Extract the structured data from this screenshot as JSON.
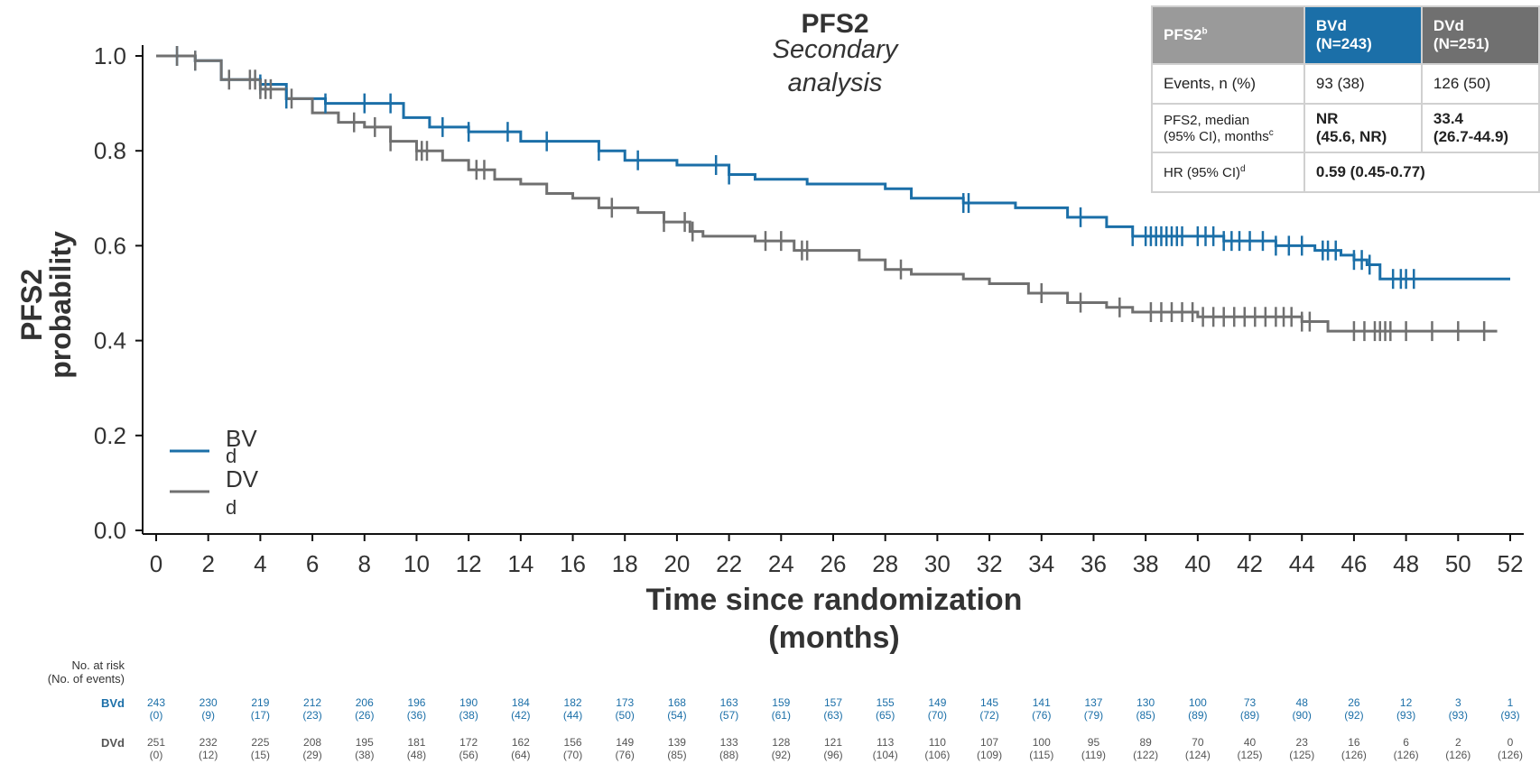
{
  "colors": {
    "bvd": "#1b6fa8",
    "dvd": "#707070",
    "axis": "#111111",
    "header_gray": "#9a9a9a"
  },
  "title": {
    "main": "PFS2",
    "sub1": "Secondary",
    "sub2": "analysis"
  },
  "chart_data": {
    "type": "line",
    "subtype": "kaplan-meier-step",
    "ylabel_line1": "PFS2",
    "ylabel_line2": "probability",
    "xlabel_line1": "Time since randomization",
    "xlabel_line2": "(months)",
    "xlim": [
      0,
      52
    ],
    "ylim": [
      0,
      1
    ],
    "x_ticks": [
      0,
      2,
      4,
      6,
      8,
      10,
      12,
      14,
      16,
      18,
      20,
      22,
      24,
      26,
      28,
      30,
      32,
      34,
      36,
      38,
      40,
      42,
      44,
      46,
      48,
      50,
      52
    ],
    "y_ticks": [
      "0.0",
      "0.2",
      "0.4",
      "0.6",
      "0.8",
      "1.0"
    ],
    "legend_position": "bottom-left",
    "series": [
      {
        "name_line1": "BV",
        "name_line2": "d",
        "color": "#1b6fa8",
        "points": [
          [
            0,
            1.0
          ],
          [
            1.5,
            0.99
          ],
          [
            2.5,
            0.95
          ],
          [
            4,
            0.94
          ],
          [
            5,
            0.91
          ],
          [
            6.5,
            0.9
          ],
          [
            9.5,
            0.87
          ],
          [
            10.5,
            0.85
          ],
          [
            12,
            0.84
          ],
          [
            14,
            0.82
          ],
          [
            17,
            0.8
          ],
          [
            18,
            0.78
          ],
          [
            20,
            0.77
          ],
          [
            22,
            0.75
          ],
          [
            23,
            0.74
          ],
          [
            25,
            0.73
          ],
          [
            28,
            0.72
          ],
          [
            29,
            0.7
          ],
          [
            31,
            0.69
          ],
          [
            33,
            0.68
          ],
          [
            35,
            0.66
          ],
          [
            36.5,
            0.64
          ],
          [
            37.5,
            0.62
          ],
          [
            41,
            0.61
          ],
          [
            43,
            0.6
          ],
          [
            44.5,
            0.59
          ],
          [
            45.5,
            0.58
          ],
          [
            46,
            0.57
          ],
          [
            46.5,
            0.56
          ],
          [
            47,
            0.53
          ],
          [
            52,
            0.53
          ]
        ],
        "censor_x": [
          0.8,
          1.5,
          4,
          5,
          6.5,
          8,
          9,
          11,
          12,
          13.5,
          15,
          17,
          18.5,
          21.5,
          22,
          31,
          31.2,
          35.5,
          37.5,
          38,
          38.2,
          38.4,
          38.6,
          38.8,
          39,
          39.2,
          39.4,
          40,
          40.3,
          40.6,
          41,
          41.3,
          41.6,
          42,
          42.5,
          43,
          43.5,
          44,
          44.8,
          45,
          45.3,
          46,
          46.3,
          46.6,
          47.5,
          47.8,
          48,
          48.3
        ]
      },
      {
        "name_line1": "DV",
        "name_line2": "d",
        "color": "#707070",
        "points": [
          [
            0,
            1.0
          ],
          [
            1.5,
            0.99
          ],
          [
            2.5,
            0.95
          ],
          [
            4,
            0.93
          ],
          [
            5,
            0.91
          ],
          [
            6,
            0.88
          ],
          [
            7,
            0.86
          ],
          [
            8,
            0.85
          ],
          [
            9,
            0.82
          ],
          [
            10,
            0.8
          ],
          [
            11,
            0.78
          ],
          [
            12,
            0.76
          ],
          [
            13,
            0.74
          ],
          [
            14,
            0.73
          ],
          [
            15,
            0.71
          ],
          [
            16,
            0.7
          ],
          [
            17,
            0.68
          ],
          [
            18.5,
            0.67
          ],
          [
            19.5,
            0.65
          ],
          [
            20.5,
            0.63
          ],
          [
            21,
            0.62
          ],
          [
            23,
            0.61
          ],
          [
            24.5,
            0.59
          ],
          [
            27,
            0.57
          ],
          [
            28,
            0.55
          ],
          [
            29,
            0.54
          ],
          [
            31,
            0.53
          ],
          [
            32,
            0.52
          ],
          [
            33.5,
            0.5
          ],
          [
            35,
            0.48
          ],
          [
            36.5,
            0.47
          ],
          [
            37.5,
            0.46
          ],
          [
            40,
            0.45
          ],
          [
            44,
            0.44
          ],
          [
            45,
            0.42
          ],
          [
            51.5,
            0.42
          ]
        ],
        "censor_x": [
          0.8,
          1.5,
          2.8,
          3.6,
          3.8,
          4,
          4.2,
          4.4,
          5.2,
          7.6,
          8.4,
          9,
          10,
          10.2,
          10.4,
          12.3,
          12.6,
          17.5,
          19.5,
          20.3,
          20.6,
          23.4,
          24,
          24.8,
          25,
          28.6,
          34,
          35.5,
          37,
          38.2,
          38.6,
          39,
          39.4,
          39.8,
          40.2,
          40.6,
          41,
          41.4,
          41.8,
          42.2,
          42.6,
          43,
          43.3,
          43.6,
          44,
          44.3,
          46,
          46.4,
          46.8,
          47,
          47.2,
          47.4,
          48,
          49,
          50,
          51
        ]
      }
    ]
  },
  "summary_table": {
    "header_label": "PFS2",
    "header_label_sup": "b",
    "bvd_header_line1": "BVd",
    "bvd_header_line2": "(N=243)",
    "dvd_header_line1": "DVd",
    "dvd_header_line2": "(N=251)",
    "row1_label": "Events, n (%)",
    "row1_bvd": "93 (38)",
    "row1_dvd": "126 (50)",
    "row2_label_line1": "PFS2, median",
    "row2_label_line2": "(95% CI), months",
    "row2_label_sup": "c",
    "row2_bvd_line1": "NR",
    "row2_bvd_line2": "(45.6, NR)",
    "row2_dvd_line1": "33.4",
    "row2_dvd_line2": "(26.7-44.9)",
    "row3_label": "HR (95% CI)",
    "row3_label_sup": "d",
    "row3_value": "0.59 (0.45-0.77)"
  },
  "risk_table": {
    "header_line1": "No. at risk",
    "header_line2": "(No. of events)",
    "bvd_label": "BVd",
    "dvd_label": "DVd",
    "bvd_at_risk": [
      "243",
      "230",
      "219",
      "212",
      "206",
      "196",
      "190",
      "184",
      "182",
      "173",
      "168",
      "163",
      "159",
      "157",
      "155",
      "149",
      "145",
      "141",
      "137",
      "130",
      "100",
      "73",
      "48",
      "26",
      "12",
      "3",
      "1"
    ],
    "bvd_events": [
      "(0)",
      "(9)",
      "(17)",
      "(23)",
      "(26)",
      "(36)",
      "(38)",
      "(42)",
      "(44)",
      "(50)",
      "(54)",
      "(57)",
      "(61)",
      "(63)",
      "(65)",
      "(70)",
      "(72)",
      "(76)",
      "(79)",
      "(85)",
      "(89)",
      "(89)",
      "(90)",
      "(92)",
      "(93)",
      "(93)",
      "(93)"
    ],
    "dvd_at_risk": [
      "251",
      "232",
      "225",
      "208",
      "195",
      "181",
      "172",
      "162",
      "156",
      "149",
      "139",
      "133",
      "128",
      "121",
      "113",
      "110",
      "107",
      "100",
      "95",
      "89",
      "70",
      "40",
      "23",
      "16",
      "6",
      "2",
      "0"
    ],
    "dvd_events": [
      "(0)",
      "(12)",
      "(15)",
      "(29)",
      "(38)",
      "(48)",
      "(56)",
      "(64)",
      "(70)",
      "(76)",
      "(85)",
      "(88)",
      "(92)",
      "(96)",
      "(104)",
      "(106)",
      "(109)",
      "(115)",
      "(119)",
      "(122)",
      "(124)",
      "(125)",
      "(125)",
      "(126)",
      "(126)",
      "(126)",
      "(126)"
    ]
  }
}
